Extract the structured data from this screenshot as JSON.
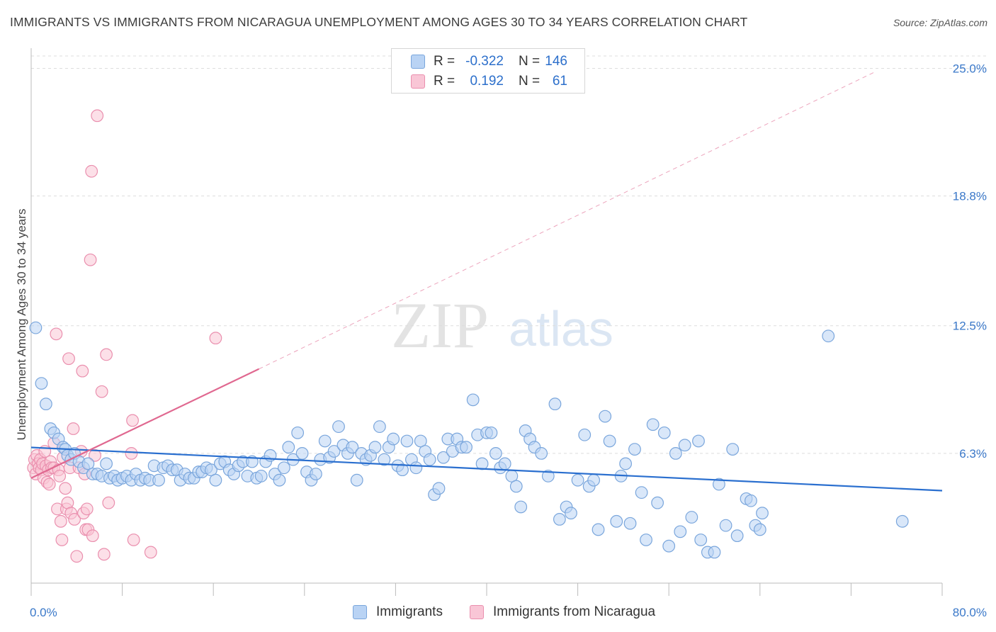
{
  "title": "IMMIGRANTS VS IMMIGRANTS FROM NICARAGUA UNEMPLOYMENT AMONG AGES 30 TO 34 YEARS CORRELATION CHART",
  "source": "Source: ZipAtlas.com",
  "watermark": {
    "zip": "ZIP",
    "atlas": "atlas"
  },
  "legend_top": [
    {
      "series": "Immigrants",
      "r_label": "R =",
      "r_value": "-0.322",
      "n_label": "N =",
      "n_value": "146"
    },
    {
      "series": "Immigrants from Nicaragua",
      "r_label": "R =",
      "r_value": "0.192",
      "n_label": "N =",
      "n_value": "61"
    }
  ],
  "legend_bottom": [
    "Immigrants",
    "Immigrants from Nicaragua"
  ],
  "colors": {
    "blue_fill": "#b9d3f4",
    "blue_stroke": "#7aa6dc",
    "blue_line": "#2a6fcf",
    "pink_fill": "#f9c6d6",
    "pink_stroke": "#ea8fae",
    "pink_line": "#e06890",
    "tick_label": "#3a78c9",
    "grid": "#dddddd"
  },
  "chart_data": {
    "type": "scatter",
    "title": "IMMIGRANTS VS IMMIGRANTS FROM NICARAGUA UNEMPLOYMENT AMONG AGES 30 TO 34 YEARS CORRELATION CHART",
    "xlabel": "",
    "ylabel": "Unemployment Among Ages 30 to 34 years",
    "xlim": [
      0,
      80
    ],
    "ylim": [
      0,
      25.6
    ],
    "x_tick_labels": [
      {
        "value": 0,
        "label": "0.0%"
      },
      {
        "value": 80,
        "label": "80.0%"
      }
    ],
    "y_ticks": [
      {
        "value": 6.3,
        "label": "6.3%"
      },
      {
        "value": 12.5,
        "label": "12.5%"
      },
      {
        "value": 18.8,
        "label": "18.8%"
      },
      {
        "value": 25.0,
        "label": "25.0%"
      }
    ],
    "grid": true,
    "series": [
      {
        "name": "Immigrants",
        "color": "blue",
        "trend": {
          "x": [
            0,
            80
          ],
          "y": [
            6.59,
            4.49
          ],
          "extend_dashed": false
        },
        "points": [
          [
            0.4,
            12.4
          ],
          [
            0.9,
            9.7
          ],
          [
            1.3,
            8.7
          ],
          [
            1.7,
            7.5
          ],
          [
            2.0,
            7.3
          ],
          [
            2.4,
            7.0
          ],
          [
            2.8,
            6.6
          ],
          [
            3.0,
            6.5
          ],
          [
            3.2,
            6.2
          ],
          [
            3.5,
            6.0
          ],
          [
            3.8,
            6.3
          ],
          [
            4.2,
            5.9
          ],
          [
            4.6,
            5.6
          ],
          [
            5.0,
            5.8
          ],
          [
            5.4,
            5.3
          ],
          [
            5.8,
            5.3
          ],
          [
            6.2,
            5.2
          ],
          [
            6.6,
            5.8
          ],
          [
            6.9,
            5.1
          ],
          [
            7.3,
            5.2
          ],
          [
            7.6,
            5.0
          ],
          [
            8.0,
            5.1
          ],
          [
            8.4,
            5.2
          ],
          [
            8.8,
            5.0
          ],
          [
            9.2,
            5.3
          ],
          [
            9.6,
            5.0
          ],
          [
            10.0,
            5.1
          ],
          [
            10.4,
            5.0
          ],
          [
            10.8,
            5.7
          ],
          [
            11.2,
            5.0
          ],
          [
            11.6,
            5.6
          ],
          [
            12.0,
            5.7
          ],
          [
            12.4,
            5.5
          ],
          [
            12.8,
            5.5
          ],
          [
            13.1,
            5.0
          ],
          [
            13.5,
            5.3
          ],
          [
            13.9,
            5.1
          ],
          [
            14.3,
            5.1
          ],
          [
            14.7,
            5.4
          ],
          [
            15.0,
            5.4
          ],
          [
            15.4,
            5.6
          ],
          [
            15.8,
            5.5
          ],
          [
            16.2,
            5.0
          ],
          [
            16.6,
            5.8
          ],
          [
            17.0,
            5.9
          ],
          [
            17.4,
            5.5
          ],
          [
            17.8,
            5.3
          ],
          [
            18.2,
            5.7
          ],
          [
            18.6,
            5.9
          ],
          [
            19.0,
            5.2
          ],
          [
            19.4,
            5.9
          ],
          [
            19.8,
            5.1
          ],
          [
            20.2,
            5.2
          ],
          [
            20.6,
            5.9
          ],
          [
            21.0,
            6.2
          ],
          [
            21.4,
            5.3
          ],
          [
            21.8,
            5.0
          ],
          [
            22.2,
            5.6
          ],
          [
            22.6,
            6.6
          ],
          [
            23.0,
            6.0
          ],
          [
            23.4,
            7.3
          ],
          [
            23.8,
            6.3
          ],
          [
            24.2,
            5.4
          ],
          [
            24.6,
            5.0
          ],
          [
            25.0,
            5.3
          ],
          [
            25.4,
            6.0
          ],
          [
            25.8,
            6.9
          ],
          [
            26.2,
            6.1
          ],
          [
            26.6,
            6.4
          ],
          [
            27.0,
            7.6
          ],
          [
            27.4,
            6.7
          ],
          [
            27.8,
            6.3
          ],
          [
            28.2,
            6.6
          ],
          [
            28.6,
            5.0
          ],
          [
            29.0,
            6.3
          ],
          [
            29.4,
            6.0
          ],
          [
            29.8,
            6.2
          ],
          [
            30.2,
            6.6
          ],
          [
            30.6,
            7.6
          ],
          [
            31.0,
            6.0
          ],
          [
            31.4,
            6.6
          ],
          [
            31.8,
            7.0
          ],
          [
            32.2,
            5.7
          ],
          [
            32.6,
            5.5
          ],
          [
            33.0,
            6.9
          ],
          [
            33.4,
            6.0
          ],
          [
            33.8,
            5.6
          ],
          [
            34.2,
            6.9
          ],
          [
            34.6,
            6.4
          ],
          [
            35.0,
            6.0
          ],
          [
            35.4,
            4.3
          ],
          [
            35.8,
            4.6
          ],
          [
            36.2,
            6.1
          ],
          [
            36.6,
            7.0
          ],
          [
            37.0,
            6.4
          ],
          [
            37.4,
            7.0
          ],
          [
            37.8,
            6.6
          ],
          [
            38.2,
            6.6
          ],
          [
            38.8,
            8.9
          ],
          [
            39.2,
            7.2
          ],
          [
            39.6,
            5.8
          ],
          [
            40.0,
            7.3
          ],
          [
            40.4,
            7.3
          ],
          [
            40.8,
            6.3
          ],
          [
            41.2,
            5.6
          ],
          [
            41.6,
            5.8
          ],
          [
            42.2,
            5.2
          ],
          [
            42.6,
            4.7
          ],
          [
            43.0,
            3.7
          ],
          [
            43.4,
            7.4
          ],
          [
            43.8,
            7.0
          ],
          [
            44.2,
            6.6
          ],
          [
            44.8,
            6.3
          ],
          [
            45.4,
            5.2
          ],
          [
            46.0,
            8.7
          ],
          [
            46.4,
            3.1
          ],
          [
            47.0,
            3.7
          ],
          [
            47.4,
            3.4
          ],
          [
            48.0,
            5.0
          ],
          [
            48.6,
            7.2
          ],
          [
            49.0,
            4.7
          ],
          [
            49.4,
            5.0
          ],
          [
            49.8,
            2.6
          ],
          [
            50.4,
            8.1
          ],
          [
            50.8,
            6.9
          ],
          [
            51.4,
            3.0
          ],
          [
            51.8,
            5.2
          ],
          [
            52.2,
            5.8
          ],
          [
            52.6,
            2.9
          ],
          [
            53.0,
            6.5
          ],
          [
            53.6,
            4.4
          ],
          [
            54.0,
            2.1
          ],
          [
            54.6,
            7.7
          ],
          [
            55.0,
            3.9
          ],
          [
            55.6,
            7.3
          ],
          [
            56.0,
            1.8
          ],
          [
            56.6,
            6.3
          ],
          [
            57.0,
            2.5
          ],
          [
            57.4,
            6.7
          ],
          [
            58.0,
            3.2
          ],
          [
            58.6,
            6.9
          ],
          [
            58.8,
            2.1
          ],
          [
            59.4,
            1.5
          ],
          [
            60.0,
            1.5
          ],
          [
            60.4,
            4.8
          ],
          [
            61.0,
            2.8
          ],
          [
            61.6,
            6.5
          ],
          [
            62.0,
            2.3
          ],
          [
            62.8,
            4.1
          ],
          [
            63.6,
            2.8
          ],
          [
            63.2,
            4.0
          ],
          [
            64.0,
            2.6
          ],
          [
            64.2,
            3.4
          ],
          [
            70.0,
            12.0
          ],
          [
            76.5,
            3.0
          ]
        ]
      },
      {
        "name": "Immigrants from Nicaragua",
        "color": "pink",
        "trend": {
          "x": [
            0,
            20
          ],
          "y": [
            5.1,
            10.4
          ],
          "extend_dashed": true,
          "dashed_to": [
            74,
            24.8
          ]
        },
        "points": [
          [
            0.2,
            5.6
          ],
          [
            0.3,
            6.0
          ],
          [
            0.4,
            5.3
          ],
          [
            0.5,
            6.2
          ],
          [
            0.6,
            5.8
          ],
          [
            0.7,
            5.6
          ],
          [
            0.8,
            6.0
          ],
          [
            0.9,
            5.5
          ],
          [
            1.0,
            5.8
          ],
          [
            1.1,
            5.1
          ],
          [
            1.2,
            6.4
          ],
          [
            1.3,
            5.7
          ],
          [
            1.4,
            4.9
          ],
          [
            1.5,
            5.5
          ],
          [
            1.6,
            4.8
          ],
          [
            1.7,
            5.9
          ],
          [
            1.8,
            5.6
          ],
          [
            2.0,
            5.6
          ],
          [
            2.0,
            6.8
          ],
          [
            2.2,
            12.1
          ],
          [
            2.3,
            3.6
          ],
          [
            2.4,
            5.5
          ],
          [
            2.5,
            5.2
          ],
          [
            2.6,
            3.0
          ],
          [
            2.7,
            2.1
          ],
          [
            2.8,
            6.1
          ],
          [
            3.0,
            4.6
          ],
          [
            3.1,
            3.6
          ],
          [
            3.2,
            3.9
          ],
          [
            3.3,
            10.9
          ],
          [
            3.4,
            5.6
          ],
          [
            3.5,
            3.4
          ],
          [
            3.7,
            7.5
          ],
          [
            3.8,
            3.1
          ],
          [
            4.0,
            1.3
          ],
          [
            4.2,
            5.6
          ],
          [
            4.4,
            6.4
          ],
          [
            4.5,
            10.3
          ],
          [
            4.6,
            3.4
          ],
          [
            4.7,
            5.3
          ],
          [
            4.8,
            2.6
          ],
          [
            4.9,
            3.6
          ],
          [
            5.0,
            2.6
          ],
          [
            5.2,
            15.7
          ],
          [
            5.3,
            20.0
          ],
          [
            5.4,
            2.3
          ],
          [
            5.6,
            6.2
          ],
          [
            5.8,
            22.7
          ],
          [
            6.2,
            9.3
          ],
          [
            6.4,
            1.4
          ],
          [
            6.6,
            11.1
          ],
          [
            6.8,
            3.9
          ],
          [
            8.8,
            6.3
          ],
          [
            8.9,
            7.9
          ],
          [
            9.0,
            2.1
          ],
          [
            10.5,
            1.5
          ],
          [
            16.2,
            11.9
          ]
        ]
      }
    ]
  }
}
